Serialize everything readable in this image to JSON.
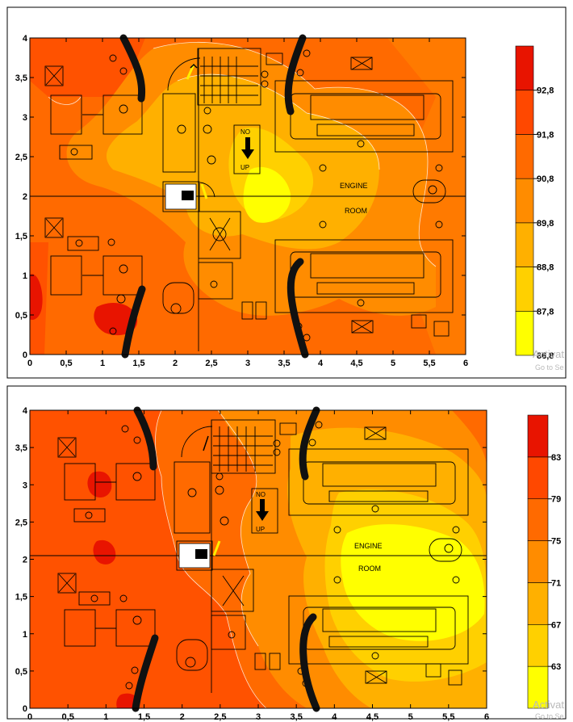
{
  "chart_data": [
    {
      "type": "heatmap",
      "title": "",
      "xlabel": "",
      "ylabel": "",
      "xlim": [
        0,
        6
      ],
      "ylim": [
        0,
        4
      ],
      "x_ticks": [
        "0",
        "0,5",
        "1",
        "1,5",
        "2",
        "2,5",
        "3",
        "3,5",
        "4",
        "4,5",
        "5",
        "5,5",
        "6"
      ],
      "y_ticks": [
        "0",
        "0,5",
        "1",
        "1,5",
        "2",
        "2,5",
        "3",
        "3,5",
        "4"
      ],
      "colorbar_labels": [
        "86,8",
        "87,8",
        "88,8",
        "89,8",
        "90,8",
        "91,8",
        "92,8"
      ],
      "colorbar_colors": [
        "#ffff00",
        "#ffd000",
        "#ffb000",
        "#ff8c00",
        "#ff6a00",
        "#ff4800",
        "#e81400"
      ],
      "room_labels": [
        "ENGINE",
        "ROOM"
      ],
      "door_labels": [
        "NO",
        "UP"
      ]
    },
    {
      "type": "heatmap",
      "title": "",
      "xlabel": "",
      "ylabel": "",
      "xlim": [
        0,
        6
      ],
      "ylim": [
        0,
        4
      ],
      "x_ticks": [
        "0",
        "0,5",
        "1",
        "1,5",
        "2",
        "2,5",
        "3",
        "3,5",
        "4",
        "4,5",
        "5",
        "5,5",
        "6"
      ],
      "y_ticks": [
        "0",
        "0,5",
        "1",
        "1,5",
        "2",
        "2,5",
        "3",
        "3,5",
        "4"
      ],
      "colorbar_labels": [
        "63",
        "67",
        "71",
        "75",
        "79",
        "83"
      ],
      "colorbar_colors": [
        "#ffff00",
        "#ffd000",
        "#ffb000",
        "#ff8c00",
        "#ff6a00",
        "#ff4800",
        "#e81400"
      ],
      "room_labels": [
        "ENGINE",
        "ROOM"
      ],
      "door_labels": [
        "NO",
        "UP"
      ]
    }
  ],
  "watermark": {
    "line1": "Activat",
    "line2": "Go to Se"
  }
}
